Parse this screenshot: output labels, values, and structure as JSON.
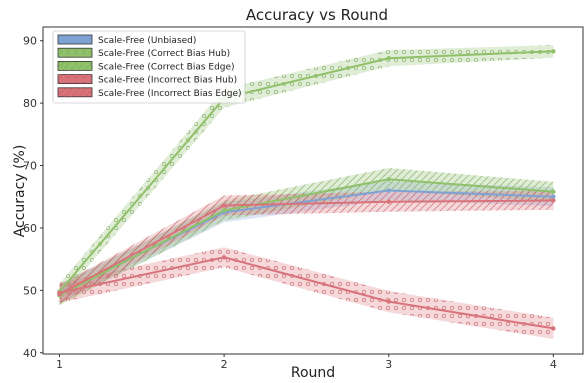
{
  "chart_data": {
    "type": "line",
    "title": "Accuracy vs Round",
    "xlabel": "Round",
    "ylabel": "Accuracy (%)",
    "x": [
      1,
      2,
      3,
      4
    ],
    "xlim": [
      0.9,
      4.18
    ],
    "ylim": [
      39.8,
      92.2
    ],
    "xticks": [
      1,
      2,
      3,
      4
    ],
    "yticks": [
      40,
      50,
      60,
      70,
      80,
      90
    ],
    "grid": false,
    "legend_position": "top-left",
    "series": [
      {
        "name": "Scale-Free (Unbiased)",
        "values": [
          49.5,
          62.5,
          66.0,
          65.0
        ],
        "band": [
          1.5,
          1.6,
          1.5,
          1.5
        ],
        "color": "#7fa2d4",
        "hatch": "none"
      },
      {
        "name": "Scale-Free (Correct Bias Hub)",
        "values": [
          49.8,
          80.8,
          87.2,
          88.3
        ],
        "band": [
          1.3,
          1.5,
          1.3,
          1.0
        ],
        "color": "#8fc06a",
        "hatch": "circle"
      },
      {
        "name": "Scale-Free (Correct Bias Edge)",
        "values": [
          49.2,
          62.8,
          67.8,
          65.8
        ],
        "band": [
          1.6,
          1.6,
          1.8,
          1.6
        ],
        "color": "#8fc06a",
        "hatch": "slash"
      },
      {
        "name": "Scale-Free (Incorrect Bias Hub)",
        "values": [
          49.6,
          55.3,
          48.2,
          43.9
        ],
        "band": [
          1.6,
          1.6,
          1.7,
          1.7
        ],
        "color": "#d9737a",
        "hatch": "circle"
      },
      {
        "name": "Scale-Free (Incorrect Bias Edge)",
        "values": [
          49.4,
          63.6,
          64.2,
          64.4
        ],
        "band": [
          1.5,
          1.6,
          1.6,
          1.5
        ],
        "color": "#d9737a",
        "hatch": "slash"
      }
    ]
  }
}
